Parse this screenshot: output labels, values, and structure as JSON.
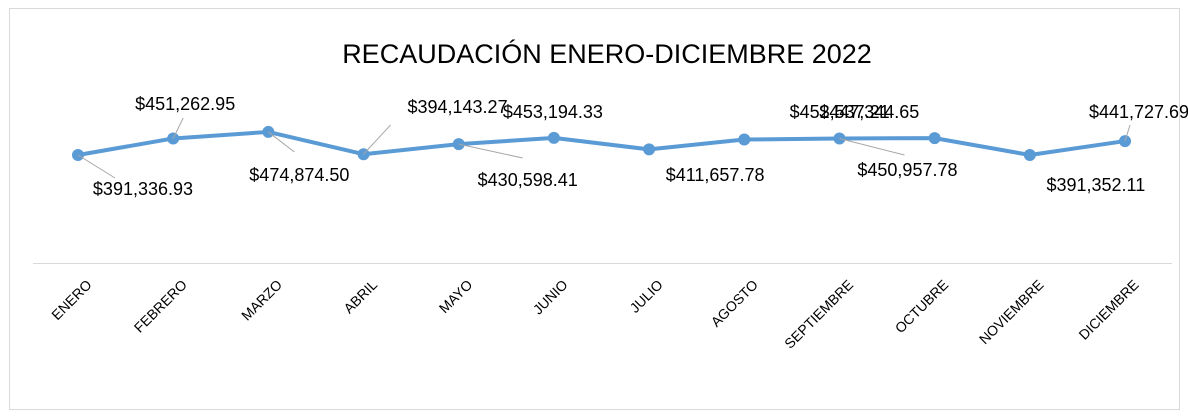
{
  "chart_data": {
    "type": "line",
    "title": "RECAUDACIÓN ENERO-DICIEMBRE 2022",
    "categories": [
      "ENERO",
      "FEBRERO",
      "MARZO",
      "ABRIL",
      "MAYO",
      "JUNIO",
      "JULIO",
      "AGOSTO",
      "SEPTIEMBRE",
      "OCTUBRE",
      "NOVIEMBRE",
      "DICIEMBRE"
    ],
    "series": [
      {
        "name": "Recaudación",
        "color": "#5b9bd5",
        "values": [
          391336.93,
          451262.95,
          474874.5,
          394143.27,
          430598.41,
          453194.33,
          411657.78,
          447344.65,
          450957.78,
          452537.21,
          391352.11,
          441727.69
        ],
        "value_labels": [
          "$391,336.93",
          "$451,262.95",
          "$474,874.50",
          "$394,143.27",
          "$430,598.41",
          "$453,194.33",
          "$411,657.78",
          "$447,344.65",
          "$450,957.78",
          "$452,537.21",
          "$391,352.11",
          "$441,727.69"
        ]
      }
    ],
    "ylim": [
      0,
      500000
    ]
  }
}
